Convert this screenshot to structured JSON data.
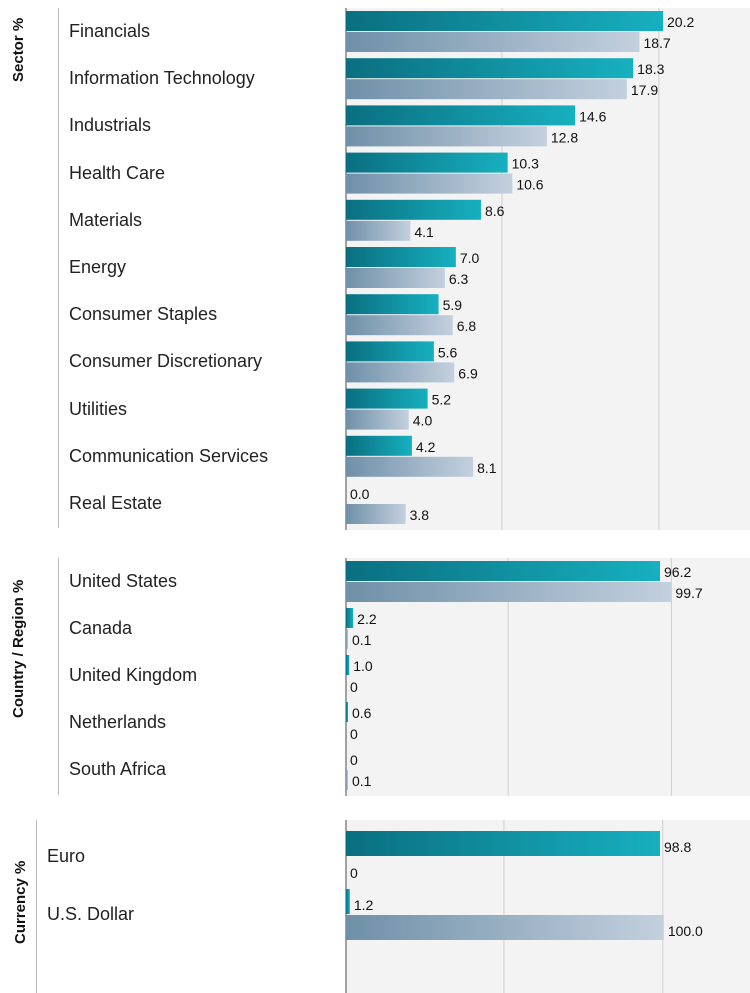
{
  "chart_data": [
    {
      "type": "bar",
      "orientation": "horizontal",
      "title": "Sector %",
      "categories": [
        "Financials",
        "Information Technology",
        "Industrials",
        "Health Care",
        "Materials",
        "Energy",
        "Consumer Staples",
        "Consumer Discretionary",
        "Utilities",
        "Communication Services",
        "Real Estate"
      ],
      "series": [
        {
          "values": [
            20.2,
            18.3,
            14.6,
            10.3,
            8.6,
            7.0,
            5.9,
            5.6,
            5.2,
            4.2,
            0.0
          ],
          "labels": [
            "20.2",
            "18.3",
            "14.6",
            "10.3",
            "8.6",
            "7.0",
            "5.9",
            "5.6",
            "5.2",
            "4.2",
            "0.0"
          ]
        },
        {
          "values": [
            18.7,
            17.9,
            12.8,
            10.6,
            4.1,
            6.3,
            6.8,
            6.9,
            4.0,
            8.1,
            3.8
          ],
          "labels": [
            "18.7",
            "17.9",
            "12.8",
            "10.6",
            "4.1",
            "6.3",
            "6.8",
            "6.9",
            "4.0",
            "8.1",
            "3.8"
          ]
        }
      ],
      "xlim": [
        0,
        30
      ],
      "gridlines": [
        10,
        20
      ]
    },
    {
      "type": "bar",
      "orientation": "horizontal",
      "title": "Country / Region %",
      "categories": [
        "United States",
        "Canada",
        "United Kingdom",
        "Netherlands",
        "South Africa"
      ],
      "series": [
        {
          "values": [
            96.2,
            2.2,
            1.0,
            0.6,
            0
          ],
          "labels": [
            "96.2",
            "2.2",
            "1.0",
            "0.6",
            "0"
          ]
        },
        {
          "values": [
            99.7,
            0.1,
            0,
            0,
            0.1
          ],
          "labels": [
            "99.7",
            "0.1",
            "0",
            "0",
            "0.1"
          ]
        }
      ],
      "xlim": [
        0,
        150
      ],
      "gridlines": [
        50,
        100
      ]
    },
    {
      "type": "bar",
      "orientation": "horizontal",
      "title": "Currency %",
      "categories": [
        "Euro",
        "U.S. Dollar"
      ],
      "series": [
        {
          "values": [
            98.8,
            1.2
          ],
          "labels": [
            "98.8",
            "1.2"
          ]
        },
        {
          "values": [
            0,
            100.0
          ],
          "labels": [
            "0",
            "100.0"
          ]
        }
      ],
      "xlim": [
        0,
        150
      ],
      "gridlines": [
        50,
        100
      ]
    }
  ],
  "colors": {
    "series1_dark": "#0a6f80",
    "series1_light": "#17b0c0",
    "series2_dark": "#6f90a8",
    "series2_light": "#c3d0de",
    "plot_bg": "#f3f3f3",
    "gridline": "#cfcfcf",
    "axis": "#888888"
  }
}
